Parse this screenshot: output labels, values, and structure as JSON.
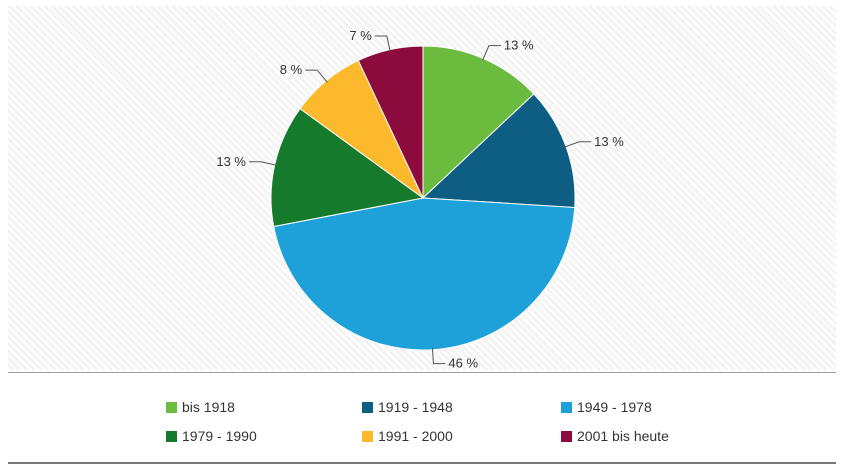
{
  "chart_data": {
    "type": "pie",
    "categories": [
      "bis 1918",
      "1919 - 1948",
      "1949 - 1978",
      "1979 - 1990",
      "1991 - 2000",
      "2001 bis heute"
    ],
    "values": [
      13,
      13,
      46,
      13,
      8,
      7
    ],
    "value_labels": [
      "13 %",
      "13 %",
      "46 %",
      "13 %",
      "8 %",
      "7 %"
    ],
    "colors": [
      "#6bbb3e",
      "#0e5e83",
      "#1ea0d8",
      "#167a2c",
      "#fdb92c",
      "#8b0b3c"
    ],
    "start_angle_deg": 0,
    "direction": "clockwise",
    "grid": false,
    "legend_position": "bottom",
    "title": "",
    "xlabel": "",
    "ylabel": ""
  },
  "legend": {
    "items": [
      {
        "label": "bis 1918",
        "color": "#6bbb3e"
      },
      {
        "label": "1919 - 1948",
        "color": "#0e5e83"
      },
      {
        "label": "1949 - 1978",
        "color": "#1ea0d8"
      },
      {
        "label": "1979 - 1990",
        "color": "#167a2c"
      },
      {
        "label": "1991 - 2000",
        "color": "#fdb92c"
      },
      {
        "label": "2001 bis heute",
        "color": "#8b0b3c"
      }
    ]
  }
}
